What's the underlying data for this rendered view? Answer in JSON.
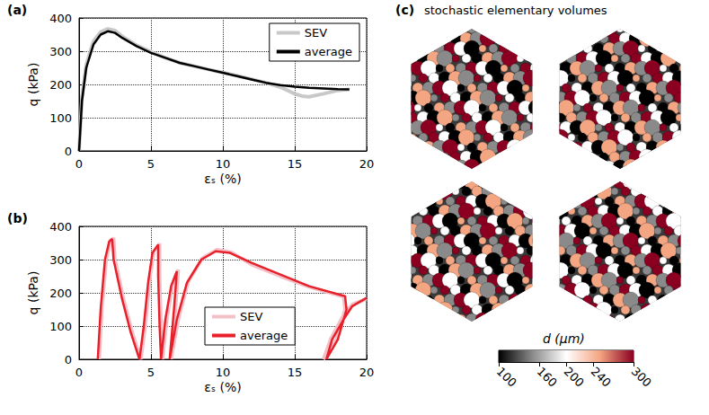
{
  "chart_data": [
    {
      "type": "line",
      "annotation": "(a)",
      "xlabel": "εₛ (%)",
      "ylabel": "q (kPa)",
      "xlim": [
        0,
        20
      ],
      "xticks": [
        0,
        5,
        10,
        15,
        20
      ],
      "ylim": [
        0,
        400
      ],
      "yticks": [
        0,
        100,
        200,
        300,
        400
      ],
      "grid": true,
      "legend": "upper right",
      "series": [
        {
          "name": "SEV",
          "color": "#c8c8c8",
          "values": [
            [
              0,
              0
            ],
            [
              0.2,
              160
            ],
            [
              0.5,
              260
            ],
            [
              1,
              330
            ],
            [
              1.5,
              358
            ],
            [
              2,
              367
            ],
            [
              2.5,
              362
            ],
            [
              3,
              345
            ],
            [
              4,
              318
            ],
            [
              5,
              298
            ],
            [
              6,
              280
            ],
            [
              7,
              265
            ],
            [
              8,
              255
            ],
            [
              9,
              245
            ],
            [
              10,
              236
            ],
            [
              11,
              226
            ],
            [
              12,
              216
            ],
            [
              13,
              205
            ],
            [
              14,
              192
            ],
            [
              15,
              172
            ],
            [
              15.5,
              165
            ],
            [
              16,
              163
            ],
            [
              17,
              172
            ],
            [
              18,
              182
            ],
            [
              18.8,
              185
            ]
          ]
        },
        {
          "name": "average",
          "color": "#000000",
          "values": [
            [
              0,
              0
            ],
            [
              0.2,
              150
            ],
            [
              0.5,
              250
            ],
            [
              1,
              320
            ],
            [
              1.5,
              350
            ],
            [
              2,
              360
            ],
            [
              2.5,
              355
            ],
            [
              3,
              340
            ],
            [
              4,
              315
            ],
            [
              5,
              295
            ],
            [
              6,
              280
            ],
            [
              7,
              265
            ],
            [
              8,
              255
            ],
            [
              9,
              245
            ],
            [
              10,
              235
            ],
            [
              11,
              225
            ],
            [
              12,
              215
            ],
            [
              13,
              205
            ],
            [
              14,
              198
            ],
            [
              15,
              193
            ],
            [
              16,
              190
            ],
            [
              17,
              188
            ],
            [
              18,
              186
            ],
            [
              18.8,
              185
            ]
          ]
        }
      ]
    },
    {
      "type": "line",
      "annotation": "(b)",
      "xlabel": "εₛ (%)",
      "ylabel": "q (kPa)",
      "xlim": [
        0,
        20
      ],
      "xticks": [
        0,
        5,
        10,
        15,
        20
      ],
      "ylim": [
        0,
        400
      ],
      "yticks": [
        0,
        100,
        200,
        300,
        400
      ],
      "grid": true,
      "legend": "lower right",
      "series": [
        {
          "name": "SEV",
          "color": "#f4c0c8",
          "values": [
            [
              1.4,
              0
            ],
            [
              1.6,
              160
            ],
            [
              1.9,
              305
            ],
            [
              2.2,
              358
            ],
            [
              2.4,
              365
            ],
            [
              2.5,
              300
            ],
            [
              3.1,
              180
            ],
            [
              3.7,
              80
            ],
            [
              4.3,
              0
            ],
            [
              4.6,
              100
            ],
            [
              4.9,
              235
            ],
            [
              5.2,
              325
            ],
            [
              5.6,
              348
            ],
            [
              5.6,
              250
            ],
            [
              5.7,
              100
            ],
            [
              5.8,
              0
            ],
            [
              6.1,
              120
            ],
            [
              6.5,
              225
            ],
            [
              6.9,
              270
            ],
            [
              6.7,
              150
            ],
            [
              6.4,
              0
            ],
            [
              6.9,
              120
            ],
            [
              7.6,
              235
            ],
            [
              8.6,
              305
            ],
            [
              9.6,
              330
            ],
            [
              10.6,
              322
            ],
            [
              12,
              285
            ],
            [
              14,
              250
            ],
            [
              16,
              218
            ],
            [
              18.4,
              188
            ],
            [
              18.5,
              150
            ],
            [
              17.9,
              60
            ],
            [
              17.0,
              0
            ],
            [
              17.5,
              60
            ],
            [
              18.3,
              125
            ],
            [
              19,
              165
            ],
            [
              20,
              182
            ]
          ]
        },
        {
          "name": "average",
          "color": "#e8202a",
          "values": [
            [
              1.3,
              0
            ],
            [
              1.5,
              150
            ],
            [
              1.8,
              300
            ],
            [
              2.1,
              355
            ],
            [
              2.3,
              362
            ],
            [
              2.4,
              300
            ],
            [
              3.0,
              180
            ],
            [
              3.6,
              80
            ],
            [
              4.2,
              0
            ],
            [
              4.5,
              100
            ],
            [
              4.8,
              230
            ],
            [
              5.1,
              320
            ],
            [
              5.5,
              345
            ],
            [
              5.5,
              250
            ],
            [
              5.6,
              100
            ],
            [
              5.7,
              0
            ],
            [
              6.0,
              120
            ],
            [
              6.4,
              220
            ],
            [
              6.8,
              265
            ],
            [
              6.6,
              150
            ],
            [
              6.3,
              0
            ],
            [
              6.8,
              120
            ],
            [
              7.5,
              230
            ],
            [
              8.5,
              300
            ],
            [
              9.5,
              325
            ],
            [
              10.5,
              320
            ],
            [
              12,
              290
            ],
            [
              14,
              255
            ],
            [
              16,
              220
            ],
            [
              18.5,
              190
            ],
            [
              18.6,
              150
            ],
            [
              18.0,
              60
            ],
            [
              17.2,
              0
            ],
            [
              17.6,
              60
            ],
            [
              18.4,
              120
            ],
            [
              19,
              160
            ],
            [
              20,
              185
            ]
          ]
        }
      ]
    },
    {
      "type": "colorbar",
      "annotation": "(c)",
      "title": "stochastic elementary volumes",
      "xlabel": "d (µm)",
      "xlim": [
        100,
        300
      ],
      "xticks": [
        100,
        160,
        200,
        240,
        300
      ],
      "colors": [
        "#000000",
        "#8a8a8a",
        "#ffffff",
        "#f4a582",
        "#8b0020"
      ]
    }
  ]
}
